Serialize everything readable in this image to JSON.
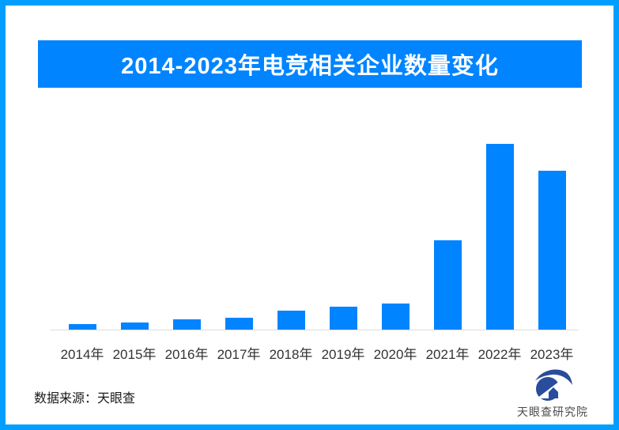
{
  "frame": {
    "border_color": "#009EFF",
    "background": "#FFFFFF"
  },
  "banner": {
    "title": "2014-2023年电竞相关企业数量变化",
    "bg_color": "#0084FF",
    "text_color": "#FFFFFF"
  },
  "chart_data": {
    "type": "bar",
    "title": "2014-2023年电竞相关企业数量变化",
    "categories": [
      "2014年",
      "2015年",
      "2016年",
      "2017年",
      "2018年",
      "2019年",
      "2020年",
      "2021年",
      "2022年",
      "2023年"
    ],
    "values": [
      7,
      9,
      13,
      15,
      24,
      29,
      33,
      113,
      235,
      201
    ],
    "value_unit": "relative bar height in px (no numeric axis labels shown in image)",
    "xlabel": "",
    "ylabel": "",
    "y_axis": "none shown",
    "grid": false,
    "legend": "none",
    "bar_color": "#0084FF",
    "axis_line_color": "#DCDCDC",
    "x_tick_color": "#333333"
  },
  "footer": {
    "source_label": "数据来源：天眼查"
  },
  "brand": {
    "name": "天眼查研究院",
    "logo_color": "#2A4C9C",
    "text_color": "#4A4A4A"
  }
}
